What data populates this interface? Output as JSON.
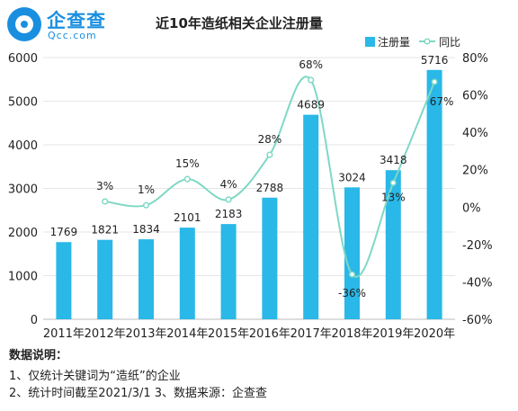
{
  "logo": {
    "brand": "企查查",
    "domain": "Qcc.com"
  },
  "chart_data": {
    "type": "bar",
    "title": "近10年造纸相关企业注册量",
    "categories": [
      "2011年",
      "2012年",
      "2013年",
      "2014年",
      "2015年",
      "2016年",
      "2017年",
      "2018年",
      "2019年",
      "2020年"
    ],
    "series": [
      {
        "name": "注册量",
        "type": "bar",
        "axis": "left",
        "values": [
          1769,
          1821,
          1834,
          2101,
          2183,
          2788,
          4689,
          3024,
          3418,
          5716
        ],
        "labels": [
          "1769",
          "1821",
          "1834",
          "2101",
          "2183",
          "2788",
          "4689",
          "3024",
          "3418",
          "5716"
        ]
      },
      {
        "name": "同比",
        "type": "line",
        "smooth": true,
        "axis": "right",
        "values": [
          null,
          3,
          1,
          15,
          4,
          28,
          68,
          -36,
          13,
          67
        ],
        "labels": [
          "",
          "3%",
          "1%",
          "15%",
          "4%",
          "28%",
          "68%",
          "-36%",
          "13%",
          "67%"
        ]
      }
    ],
    "ylim_left": [
      0,
      6000
    ],
    "yticks_left": [
      "0",
      "1000",
      "2000",
      "3000",
      "4000",
      "5000",
      "6000"
    ],
    "ylim_right": [
      -60,
      80
    ],
    "yticks_right": [
      "-60%",
      "-40%",
      "-20%",
      "0%",
      "20%",
      "40%",
      "60%",
      "80%"
    ],
    "grid": true,
    "legend_position": "top-right",
    "colors": {
      "bar": "#29b8e8",
      "line": "#7fd8c4",
      "grid": "#e6e6e6",
      "brand": "#1a8fe0"
    }
  },
  "notes": {
    "heading": "数据说明：",
    "line1": "1、仅统计关键词为“造纸”的企业",
    "line2": "2、统计时间截至2021/3/1 3、数据来源：企查查"
  }
}
